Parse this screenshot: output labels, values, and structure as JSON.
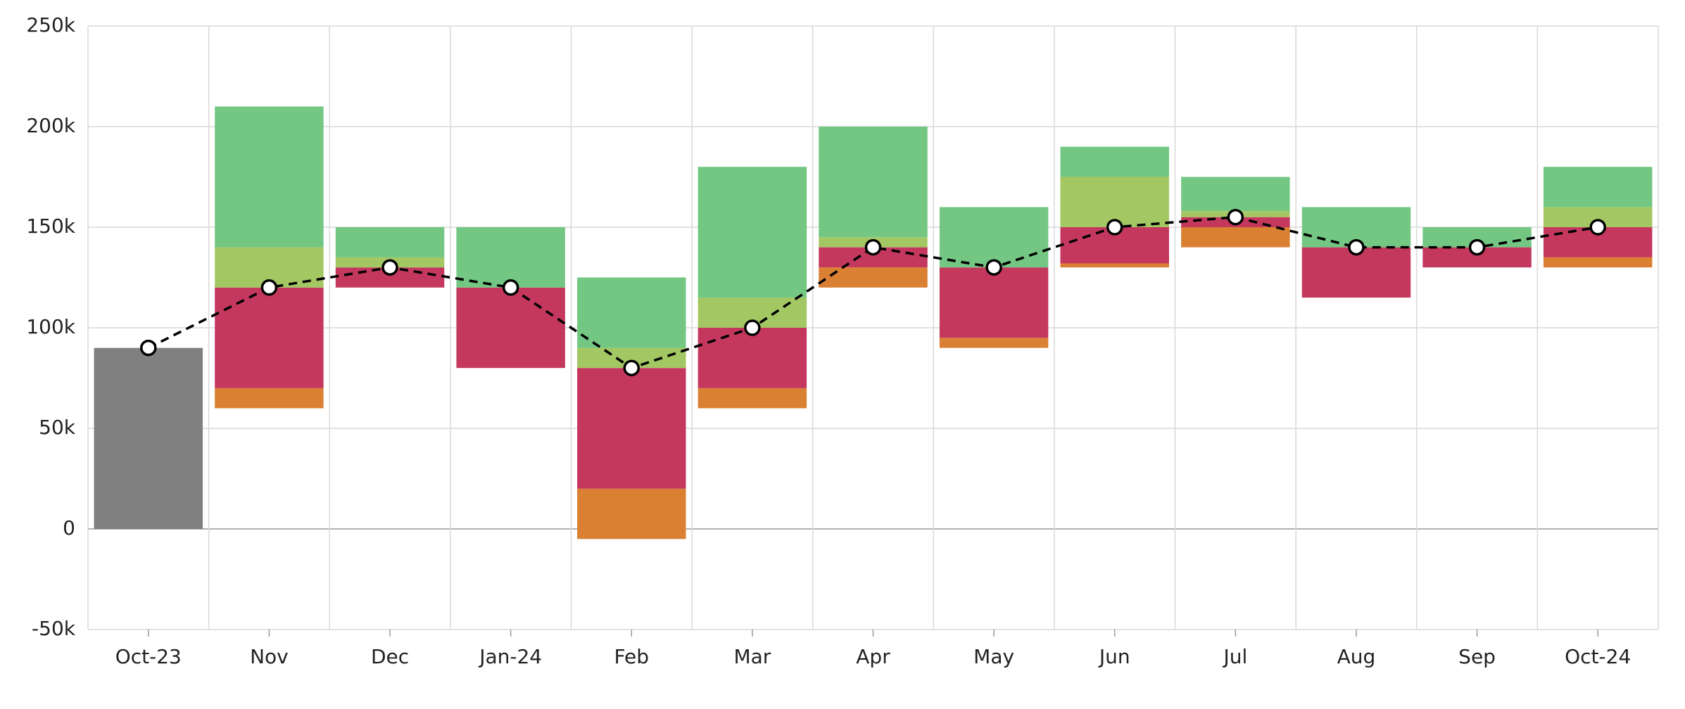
{
  "chart_data": {
    "type": "floating-stacked-bar-line",
    "categories": [
      "Oct-23",
      "Nov",
      "Dec",
      "Jan-24",
      "Feb",
      "Mar",
      "Apr",
      "May",
      "Jun",
      "Jul",
      "Aug",
      "Sep",
      "Oct-24"
    ],
    "base": [
      0,
      60000,
      120000,
      80000,
      -5000,
      60000,
      120000,
      90000,
      130000,
      140000,
      115000,
      130000,
      130000
    ],
    "series": [
      {
        "color": "#808080",
        "values": [
          90000,
          null,
          null,
          null,
          null,
          null,
          null,
          null,
          null,
          null,
          null,
          null,
          null
        ]
      },
      {
        "color": "#d98033",
        "values": [
          null,
          10000,
          null,
          null,
          25000,
          10000,
          10000,
          5000,
          2000,
          10000,
          null,
          null,
          5000
        ]
      },
      {
        "color": "#c4385e",
        "values": [
          null,
          50000,
          10000,
          40000,
          60000,
          30000,
          10000,
          35000,
          18000,
          5000,
          25000,
          10000,
          15000
        ]
      },
      {
        "color": "#a3c763",
        "values": [
          null,
          20000,
          5000,
          null,
          10000,
          15000,
          5000,
          null,
          25000,
          3000,
          null,
          null,
          10000
        ]
      },
      {
        "color": "#73c783",
        "values": [
          null,
          70000,
          15000,
          30000,
          35000,
          65000,
          55000,
          30000,
          15000,
          17000,
          20000,
          10000,
          20000
        ]
      }
    ],
    "line": {
      "color": "#000000",
      "values": [
        90000,
        120000,
        130000,
        120000,
        80000,
        100000,
        140000,
        130000,
        150000,
        155000,
        140000,
        140000,
        150000
      ]
    },
    "ylim": [
      -50000,
      250000
    ],
    "yticks": [
      {
        "value": -50000,
        "label": "-50k"
      },
      0,
      {
        "value": 50000,
        "label": "50k"
      },
      {
        "value": 100000,
        "label": "100k"
      },
      {
        "value": 150000,
        "label": "150k"
      },
      {
        "value": 200000,
        "label": "200k"
      },
      {
        "value": 250000,
        "label": "250k"
      }
    ],
    "grid": true
  }
}
